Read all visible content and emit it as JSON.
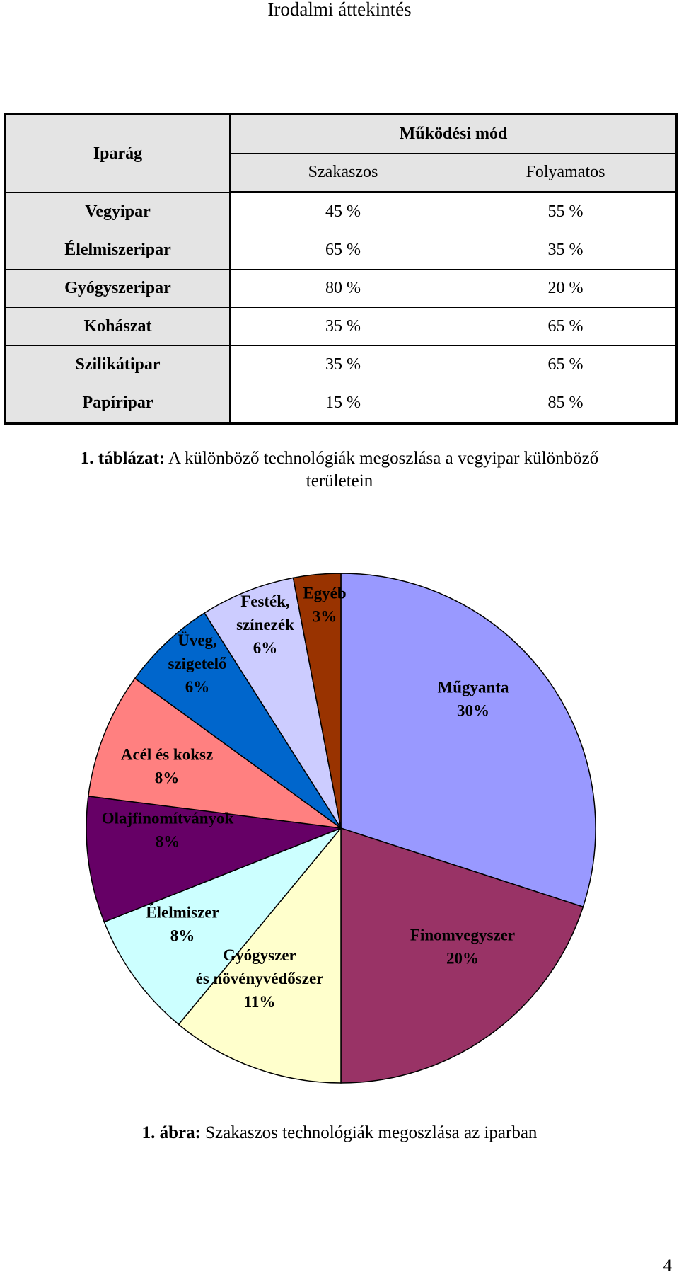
{
  "header": {
    "title": "Irodalmi áttekintés"
  },
  "table": {
    "col_label": "Iparág",
    "group_label": "Működési mód",
    "col_a": "Szakaszos",
    "col_b": "Folyamatos",
    "rows": [
      {
        "label": "Vegyipar",
        "a": "45 %",
        "b": "55 %"
      },
      {
        "label": "Élelmiszeripar",
        "a": "65 %",
        "b": "35 %"
      },
      {
        "label": "Gyógyszeripar",
        "a": "80 %",
        "b": "20 %"
      },
      {
        "label": "Kohászat",
        "a": "35 %",
        "b": "65 %"
      },
      {
        "label": "Szilikátipar",
        "a": "35 %",
        "b": "65 %"
      },
      {
        "label": "Papíripar",
        "a": "15 %",
        "b": "85 %"
      }
    ]
  },
  "table_caption": {
    "prefix": "1. táblázat:",
    "text": "A különböző technológiák megoszlása a vegyipar különböző",
    "text2": "területein"
  },
  "chart_data": {
    "type": "pie",
    "start": "12 o'clock, clockwise",
    "slices": [
      {
        "label_lines": [
          "Műgyanta",
          "30%"
        ],
        "value": 30,
        "color": "#9999ff"
      },
      {
        "label_lines": [
          "Finomvegyszer",
          "20%"
        ],
        "value": 20,
        "color": "#993366"
      },
      {
        "label_lines": [
          "Gyógyszer",
          "és növényvédőszer",
          "11%"
        ],
        "value": 11,
        "color": "#ffffcc"
      },
      {
        "label_lines": [
          "Élelmiszer",
          "8%"
        ],
        "value": 8,
        "color": "#ccffff"
      },
      {
        "label_lines": [
          "Olajfinomítványok",
          "8%"
        ],
        "value": 8,
        "color": "#660066"
      },
      {
        "label_lines": [
          "Acél és koksz",
          "8%"
        ],
        "value": 8,
        "color": "#ff8080"
      },
      {
        "label_lines": [
          "Üveg,",
          "szigetelő",
          "6%"
        ],
        "value": 6,
        "color": "#0066cc"
      },
      {
        "label_lines": [
          "Festék,",
          "színezék",
          "6%"
        ],
        "value": 6,
        "color": "#ccccff"
      },
      {
        "label_lines": [
          "Egyéb",
          "3%"
        ],
        "value": 3,
        "color": "#993300"
      }
    ]
  },
  "figure_caption": {
    "prefix": "1. ábra:",
    "text": "Szakaszos technológiák megoszlása az iparban"
  },
  "page_number": "4"
}
